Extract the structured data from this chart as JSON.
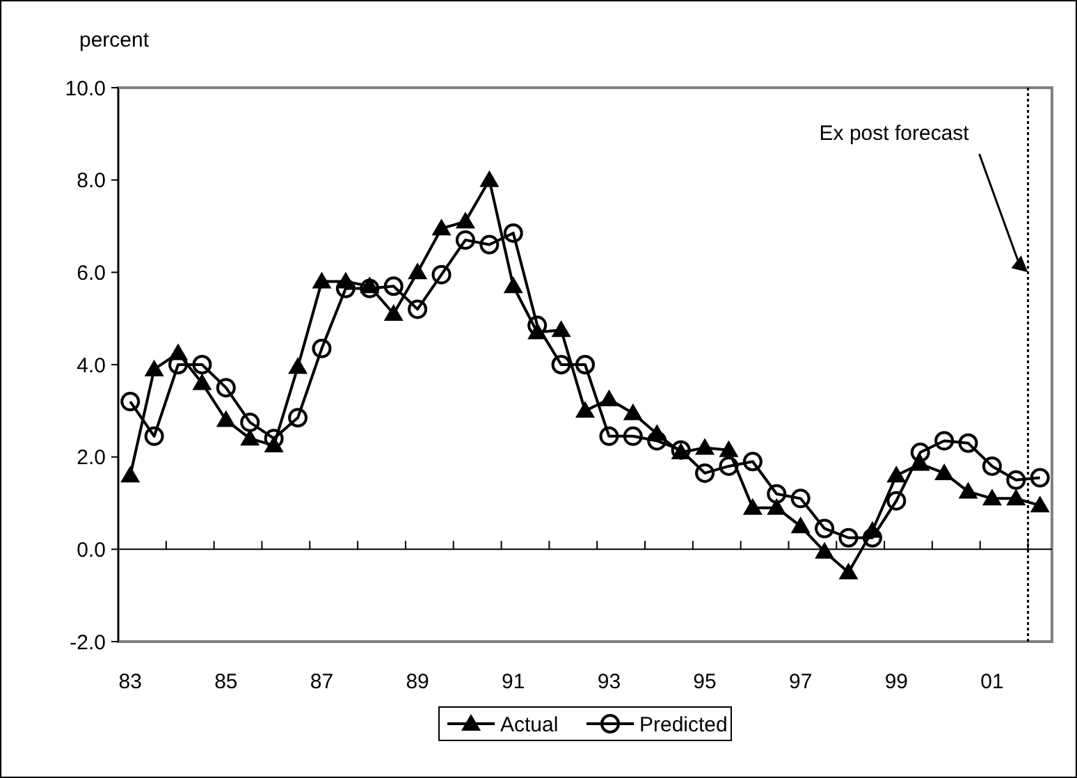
{
  "chart_data": {
    "type": "line",
    "ylabel": "percent",
    "x": [
      1983,
      1983.5,
      1984,
      1984.5,
      1985,
      1985.5,
      1986,
      1986.5,
      1987,
      1987.5,
      1988,
      1988.5,
      1989,
      1989.5,
      1990,
      1990.5,
      1991,
      1991.5,
      1992,
      1992.5,
      1993,
      1993.5,
      1994,
      1994.5,
      1995,
      1995.5,
      1996,
      1996.5,
      1997,
      1997.5,
      1998,
      1998.5,
      1999,
      1999.5,
      2000,
      2000.5,
      2001,
      2001.5,
      2002
    ],
    "series": [
      {
        "name": "Actual",
        "color": "#000000",
        "marker": "triangle",
        "values": [
          1.6,
          3.9,
          4.25,
          3.6,
          2.8,
          2.4,
          2.25,
          3.95,
          5.8,
          5.8,
          5.7,
          5.1,
          6.0,
          6.95,
          7.1,
          8.0,
          5.7,
          4.7,
          4.75,
          3.0,
          3.25,
          2.95,
          2.5,
          2.1,
          2.2,
          2.15,
          0.9,
          0.9,
          0.5,
          -0.05,
          -0.5,
          0.4,
          1.6,
          1.85,
          1.65,
          1.25,
          1.1,
          1.1,
          0.95
        ]
      },
      {
        "name": "Predicted",
        "color": "#000000",
        "marker": "circle",
        "values": [
          3.2,
          2.45,
          4.0,
          4.0,
          3.5,
          2.75,
          2.4,
          2.85,
          4.35,
          5.65,
          5.65,
          5.7,
          5.2,
          5.95,
          6.7,
          6.6,
          6.85,
          4.85,
          4.0,
          4.0,
          2.45,
          2.45,
          2.35,
          2.15,
          1.65,
          1.8,
          1.9,
          1.2,
          1.1,
          0.45,
          0.25,
          0.25,
          1.05,
          2.1,
          2.35,
          2.3,
          1.8,
          1.5,
          1.55
        ]
      }
    ],
    "xlim": [
      1982.75,
      2002.25
    ],
    "xticks": [
      {
        "value": 1983,
        "label": "83"
      },
      {
        "value": 1985,
        "label": "85"
      },
      {
        "value": 1987,
        "label": "87"
      },
      {
        "value": 1989,
        "label": "89"
      },
      {
        "value": 1991,
        "label": "91"
      },
      {
        "value": 1993,
        "label": "93"
      },
      {
        "value": 1995,
        "label": "95"
      },
      {
        "value": 1997,
        "label": "97"
      },
      {
        "value": 1999,
        "label": "99"
      },
      {
        "value": 2001,
        "label": "01"
      },
      {
        "value": 1983.75,
        "label": null
      },
      {
        "value": 1984.75,
        "label": null
      },
      {
        "value": 1985.75,
        "label": null
      },
      {
        "value": 1986.75,
        "label": null
      },
      {
        "value": 1987.75,
        "label": null
      },
      {
        "value": 1988.75,
        "label": null
      },
      {
        "value": 1989.75,
        "label": null
      },
      {
        "value": 1990.75,
        "label": null
      },
      {
        "value": 1991.75,
        "label": null
      },
      {
        "value": 1992.75,
        "label": null
      },
      {
        "value": 1993.75,
        "label": null
      },
      {
        "value": 1994.75,
        "label": null
      },
      {
        "value": 1995.75,
        "label": null
      },
      {
        "value": 1996.75,
        "label": null
      },
      {
        "value": 1997.75,
        "label": null
      },
      {
        "value": 1998.75,
        "label": null
      },
      {
        "value": 1999.75,
        "label": null
      },
      {
        "value": 2000.75,
        "label": null
      },
      {
        "value": 2001.75,
        "label": null
      }
    ],
    "ylim": [
      -2,
      10
    ],
    "yticks": [
      {
        "value": -2,
        "label": "-2.0"
      },
      {
        "value": 0,
        "label": "0.0"
      },
      {
        "value": 2,
        "label": "2.0"
      },
      {
        "value": 4,
        "label": "4.0"
      },
      {
        "value": 6,
        "label": "6.0"
      },
      {
        "value": 8,
        "label": "8.0"
      },
      {
        "value": 10,
        "label": "10.0"
      }
    ],
    "ref_lines": [
      {
        "axis": "x",
        "value": 2001.75,
        "line_style": "dotted",
        "color": "#000000"
      }
    ],
    "annotations": [
      {
        "text": "Ex post forecast",
        "x": 2001.75,
        "y": 6.0
      }
    ],
    "legend": "bottom",
    "grid": false
  }
}
